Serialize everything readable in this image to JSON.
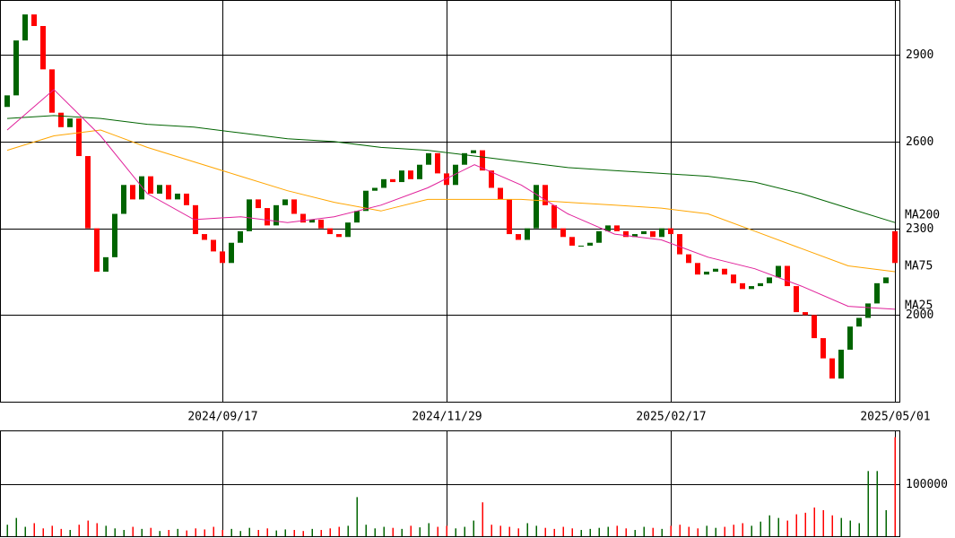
{
  "chart_data": {
    "type": "candlestick",
    "categories": [
      null,
      null,
      null,
      null,
      null,
      null,
      null,
      null,
      null,
      null,
      null,
      null,
      null,
      null,
      null,
      null,
      null,
      null,
      null,
      null,
      null,
      null,
      null,
      null,
      "2024/09/17",
      null,
      null,
      null,
      null,
      null,
      null,
      null,
      null,
      null,
      null,
      null,
      null,
      null,
      null,
      null,
      null,
      null,
      null,
      null,
      null,
      null,
      null,
      null,
      null,
      "2024/11/29",
      null,
      null,
      null,
      null,
      null,
      null,
      null,
      null,
      null,
      null,
      null,
      null,
      null,
      null,
      null,
      null,
      null,
      null,
      null,
      null,
      null,
      null,
      null,
      null,
      "2025/02/17",
      null,
      null,
      null,
      null,
      null,
      null,
      null,
      null,
      null,
      null,
      null,
      null,
      null,
      null,
      null,
      null,
      null,
      null,
      null,
      null,
      null,
      null,
      null,
      null,
      "2025/05/01"
    ],
    "open": [
      2720,
      2760,
      2950,
      3040,
      3000,
      2850,
      2700,
      2650,
      2680,
      2550,
      2300,
      2150,
      2200,
      2350,
      2450,
      2400,
      2480,
      2420,
      2450,
      2400,
      2420,
      2380,
      2280,
      2260,
      2220,
      2180,
      2250,
      2290,
      2400,
      2370,
      2310,
      2380,
      2400,
      2350,
      2320,
      2330,
      2300,
      2280,
      2270,
      2320,
      2360,
      2430,
      2440,
      2470,
      2460,
      2500,
      2470,
      2520,
      2560,
      2490,
      2450,
      2520,
      2560,
      2570,
      2500,
      2440,
      2400,
      2280,
      2260,
      2300,
      2450,
      2380,
      2300,
      2270,
      2240,
      2240,
      2250,
      2290,
      2310,
      2290,
      2270,
      2280,
      2290,
      2270,
      2300,
      2280,
      2210,
      2180,
      2140,
      2150,
      2160,
      2140,
      2110,
      2090,
      2100,
      2110,
      2130,
      2170,
      2100,
      2010,
      2000,
      1920,
      1850,
      1780,
      1880,
      1960,
      1990,
      2040,
      2110,
      2290
    ],
    "close": [
      2760,
      2950,
      3040,
      3000,
      2850,
      2700,
      2650,
      2680,
      2550,
      2300,
      2150,
      2200,
      2350,
      2450,
      2400,
      2480,
      2420,
      2450,
      2400,
      2420,
      2380,
      2280,
      2260,
      2220,
      2180,
      2250,
      2290,
      2400,
      2370,
      2310,
      2380,
      2400,
      2350,
      2320,
      2330,
      2300,
      2280,
      2270,
      2320,
      2360,
      2430,
      2440,
      2470,
      2460,
      2500,
      2470,
      2520,
      2560,
      2490,
      2450,
      2520,
      2560,
      2570,
      2500,
      2440,
      2400,
      2280,
      2260,
      2300,
      2450,
      2380,
      2300,
      2270,
      2240,
      2240,
      2250,
      2290,
      2310,
      2290,
      2270,
      2280,
      2290,
      2270,
      2300,
      2280,
      2210,
      2180,
      2140,
      2150,
      2160,
      2140,
      2110,
      2090,
      2100,
      2110,
      2130,
      2170,
      2100,
      2010,
      2000,
      1920,
      1850,
      1780,
      1880,
      1960,
      1990,
      2040,
      2110,
      2130,
      2180
    ],
    "up_color": "#006400",
    "down_color": "#ff0000",
    "ylim": [
      1700,
      3090
    ],
    "yticks": [
      2000,
      2300,
      2600,
      2900
    ],
    "ma": [
      {
        "name": "MA200",
        "color": "#006400",
        "values": [
          2680,
          2690,
          2680,
          2660,
          2650,
          2630,
          2610,
          2600,
          2580,
          2570,
          2550,
          2530,
          2510,
          2500,
          2490,
          2480,
          2460,
          2420,
          2370,
          2320
        ]
      },
      {
        "name": "MA75",
        "color": "#ffa500",
        "values": [
          2570,
          2620,
          2640,
          2580,
          2530,
          2480,
          2430,
          2390,
          2360,
          2400,
          2400,
          2400,
          2390,
          2380,
          2370,
          2350,
          2290,
          2230,
          2170,
          2150
        ]
      },
      {
        "name": "MA25",
        "color": "#e0209a",
        "values": [
          2640,
          2780,
          2620,
          2420,
          2330,
          2340,
          2320,
          2340,
          2380,
          2440,
          2520,
          2450,
          2350,
          2280,
          2260,
          2200,
          2160,
          2100,
          2030,
          2020
        ]
      }
    ],
    "volume": [
      22000,
      35000,
      18000,
      25000,
      15000,
      20000,
      14000,
      12000,
      22000,
      30000,
      25000,
      20000,
      15000,
      12000,
      18000,
      14000,
      16000,
      10000,
      12000,
      14000,
      11000,
      15000,
      13000,
      18000,
      12000,
      14000,
      10000,
      16000,
      12000,
      15000,
      11000,
      13000,
      12000,
      10000,
      14000,
      12000,
      15000,
      18000,
      20000,
      75000,
      22000,
      15000,
      18000,
      16000,
      14000,
      20000,
      17000,
      25000,
      18000,
      20000,
      15000,
      18000,
      30000,
      65000,
      22000,
      20000,
      18000,
      15000,
      25000,
      20000,
      16000,
      14000,
      18000,
      15000,
      12000,
      14000,
      16000,
      18000,
      20000,
      15000,
      12000,
      18000,
      16000,
      14000,
      20000,
      22000,
      18000,
      15000,
      20000,
      16000,
      18000,
      22000,
      25000,
      20000,
      28000,
      40000,
      35000,
      30000,
      42000,
      45000,
      55000,
      50000,
      40000,
      35000,
      30000,
      25000,
      125000,
      125000,
      50000,
      190000
    ],
    "volume_ylim": [
      0,
      203000
    ],
    "volume_yticks": [
      100000
    ]
  }
}
